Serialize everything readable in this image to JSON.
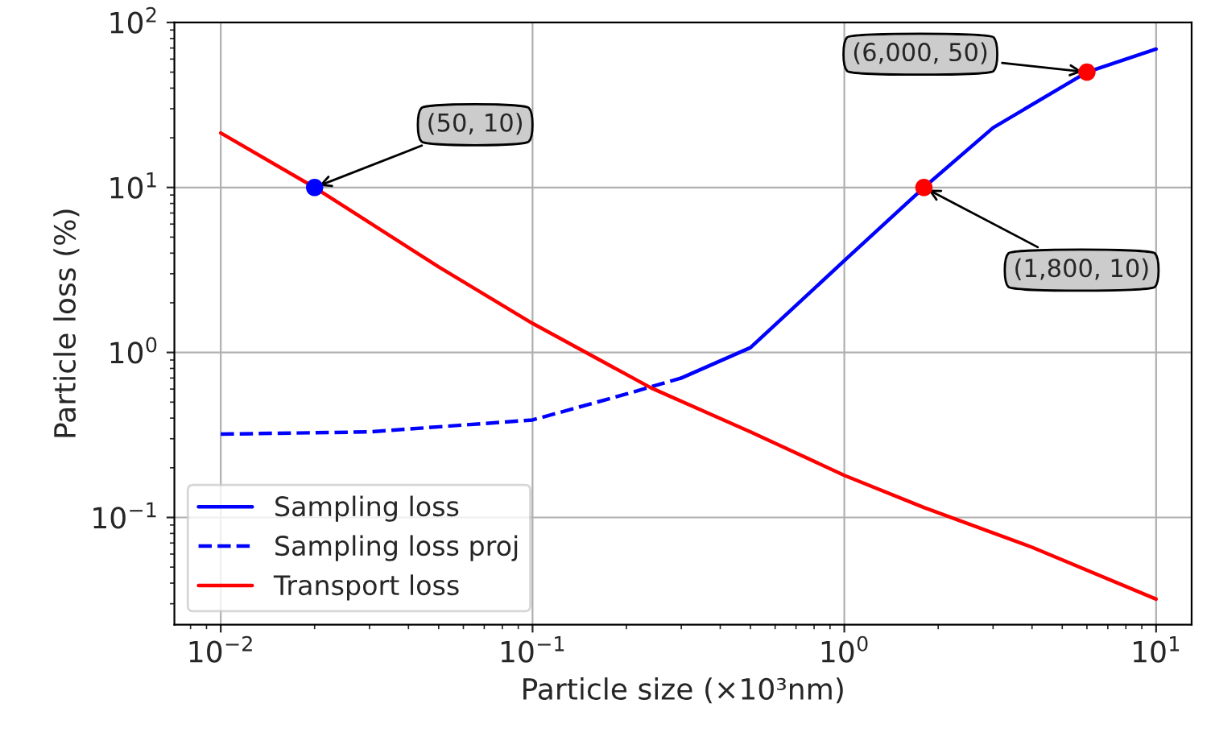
{
  "chart_data": {
    "type": "line",
    "xlabel": "Particle size (×10³nm)",
    "ylabel": "Particle loss (%)",
    "log": "xy",
    "grid": true,
    "legend": "bottom left",
    "xlim": [
      0.0071,
      13
    ],
    "ylim": [
      0.0224,
      100
    ],
    "xticks": [
      {
        "value": 0.01,
        "label": "10$^{−2}$"
      },
      {
        "value": 0.1,
        "label": "10$^{−1}$"
      },
      {
        "value": 1,
        "label": "10$^{0}$"
      },
      {
        "value": 10,
        "label": "10$^{1}$"
      }
    ],
    "yticks": [
      {
        "value": 0.1,
        "label": "10$^{−1}$"
      },
      {
        "value": 1,
        "label": "10$^{0}$"
      },
      {
        "value": 10,
        "label": "10$^{1}$"
      },
      {
        "value": 100,
        "label": "10$^{2}$"
      }
    ],
    "series": [
      {
        "name": "Sampling loss",
        "color": "#0000ff",
        "line_style": "solid",
        "x": [
          0.3,
          0.5,
          1,
          1.8,
          3,
          6,
          10
        ],
        "values": [
          0.7,
          1.07,
          3.6,
          10,
          23,
          50,
          69
        ]
      },
      {
        "name": "Sampling loss proj",
        "color": "#0000ff",
        "line_style": "dashed",
        "x": [
          0.01,
          0.03,
          0.1,
          0.2,
          0.3
        ],
        "values": [
          0.32,
          0.33,
          0.39,
          0.56,
          0.7
        ]
      },
      {
        "name": "Transport loss",
        "color": "#ff0000",
        "line_style": "solid",
        "x": [
          0.01,
          0.02,
          0.05,
          0.1,
          0.24,
          0.5,
          1,
          1.8,
          4,
          10
        ],
        "values": [
          21.4,
          10,
          3.3,
          1.5,
          0.61,
          0.33,
          0.18,
          0.115,
          0.066,
          0.032
        ]
      },
      {
        "type": "scatter",
        "color": "#0000ff",
        "marker": "circle",
        "x": [
          0.02
        ],
        "values": [
          10
        ]
      },
      {
        "type": "scatter",
        "color": "#ff0000",
        "marker": "circle",
        "x": [
          1.8,
          6
        ],
        "values": [
          10,
          50
        ]
      }
    ],
    "annotations": [
      {
        "text": "(50, 10)",
        "x": 0.02,
        "y": 10
      },
      {
        "text": "(1,800, 10)",
        "x": 1.8,
        "y": 10
      },
      {
        "text": "(6,000, 50)",
        "x": 6,
        "y": 50
      }
    ]
  }
}
